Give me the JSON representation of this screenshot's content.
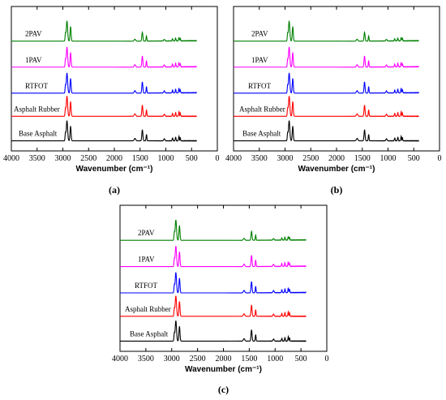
{
  "chart_data": [
    {
      "panel": "(a)",
      "type": "line",
      "xlabel": "Wavenumber (cm⁻¹)",
      "ylabel": "",
      "xlim": [
        4000,
        0
      ],
      "xticks": [
        "4000",
        "3500",
        "3000",
        "2500",
        "2000",
        "1500",
        "1000",
        "500",
        "0"
      ],
      "x_range": [
        4000,
        400
      ],
      "series": [
        {
          "name": "2PAV",
          "color": "#008000"
        },
        {
          "name": "1PAV",
          "color": "#ff00ff"
        },
        {
          "name": "RTFOT",
          "color": "#0000ff"
        },
        {
          "name": "Asphalt Rubber",
          "color": "#ff0000"
        },
        {
          "name": "Base Asphalt",
          "color": "#000000"
        }
      ]
    },
    {
      "panel": "(b)",
      "type": "line",
      "xlabel": "Wavenumber (cm⁻¹)",
      "ylabel": "",
      "xlim": [
        4000,
        0
      ],
      "xticks": [
        "4000",
        "3500",
        "3000",
        "2500",
        "2000",
        "1500",
        "1000",
        "500",
        "0"
      ],
      "x_range": [
        4000,
        400
      ],
      "series": [
        {
          "name": "2PAV",
          "color": "#008000"
        },
        {
          "name": "1PAV",
          "color": "#ff00ff"
        },
        {
          "name": "RTFOT",
          "color": "#0000ff"
        },
        {
          "name": "Asphalt Rubber",
          "color": "#ff0000"
        },
        {
          "name": "Base Asphalt",
          "color": "#000000"
        }
      ]
    },
    {
      "panel": "(c)",
      "type": "line",
      "xlabel": "Wavenumber (cm⁻¹)",
      "ylabel": "",
      "xlim": [
        4000,
        0
      ],
      "xticks": [
        "4000",
        "3500",
        "3000",
        "2500",
        "2000",
        "1500",
        "1000",
        "500",
        "0"
      ],
      "x_range": [
        4000,
        400
      ],
      "series": [
        {
          "name": "2PAV",
          "color": "#008000"
        },
        {
          "name": "1PAV",
          "color": "#ff00ff"
        },
        {
          "name": "RTFOT",
          "color": "#0000ff"
        },
        {
          "name": "Asphalt Rubber",
          "color": "#ff0000"
        },
        {
          "name": "Base Asphalt",
          "color": "#000000"
        }
      ]
    }
  ]
}
